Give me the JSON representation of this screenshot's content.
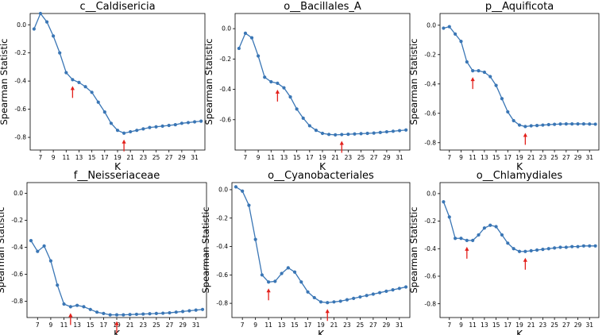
{
  "figure": {
    "x_tick_labels": [
      "7",
      "9",
      "11",
      "13",
      "15",
      "17",
      "19",
      "21",
      "23",
      "25",
      "27",
      "29",
      "31"
    ]
  },
  "chart_data": [
    {
      "type": "line",
      "title": "c__Caldisericia",
      "xlabel": "K",
      "ylabel": "Spearman Statistic",
      "xlim": [
        5.4,
        32.6
      ],
      "ylim": [
        -0.89,
        0.08
      ],
      "y_ticks": [
        0.0,
        -0.2,
        -0.4,
        -0.6,
        -0.8
      ],
      "y_tick_labels": [
        "0.0",
        "-0.2",
        "-0.4",
        "-0.6",
        "-0.8"
      ],
      "x": [
        6,
        7,
        8,
        9,
        10,
        11,
        12,
        13,
        14,
        15,
        16,
        17,
        18,
        19,
        20,
        21,
        22,
        23,
        24,
        25,
        26,
        27,
        28,
        29,
        30,
        31,
        32
      ],
      "values": [
        -0.03,
        0.08,
        0.02,
        -0.08,
        -0.2,
        -0.34,
        -0.39,
        -0.41,
        -0.44,
        -0.48,
        -0.55,
        -0.62,
        -0.7,
        -0.75,
        -0.77,
        -0.76,
        -0.75,
        -0.74,
        -0.73,
        -0.725,
        -0.72,
        -0.715,
        -0.71,
        -0.7,
        -0.695,
        -0.69,
        -0.685
      ],
      "markers": [
        12,
        20
      ]
    },
    {
      "type": "line",
      "title": "o__Bacillales_A",
      "xlabel": "K",
      "ylabel": "Spearman Statistic",
      "xlim": [
        5.4,
        32.6
      ],
      "ylim": [
        -0.8,
        0.1
      ],
      "y_ticks": [
        0.0,
        -0.2,
        -0.4,
        -0.6
      ],
      "y_tick_labels": [
        "0.0",
        "-0.2",
        "-0.4",
        "-0.6"
      ],
      "x": [
        6,
        7,
        8,
        9,
        10,
        11,
        12,
        13,
        14,
        15,
        16,
        17,
        18,
        19,
        20,
        21,
        22,
        23,
        24,
        25,
        26,
        27,
        28,
        29,
        30,
        31,
        32
      ],
      "values": [
        -0.13,
        -0.03,
        -0.06,
        -0.18,
        -0.32,
        -0.35,
        -0.36,
        -0.39,
        -0.45,
        -0.53,
        -0.59,
        -0.64,
        -0.67,
        -0.69,
        -0.697,
        -0.7,
        -0.698,
        -0.696,
        -0.694,
        -0.692,
        -0.69,
        -0.688,
        -0.684,
        -0.68,
        -0.676,
        -0.672,
        -0.668
      ],
      "markers": [
        12,
        22
      ]
    },
    {
      "type": "line",
      "title": "p__Aquificota",
      "xlabel": "K",
      "ylabel": "Spearman Statistic",
      "xlim": [
        5.4,
        32.6
      ],
      "ylim": [
        -0.85,
        0.08
      ],
      "y_ticks": [
        0.0,
        -0.2,
        -0.4,
        -0.6,
        -0.8
      ],
      "y_tick_labels": [
        "0.0",
        "-0.2",
        "-0.4",
        "-0.6",
        "-0.8"
      ],
      "x": [
        6,
        7,
        8,
        9,
        10,
        11,
        12,
        13,
        14,
        15,
        16,
        17,
        18,
        19,
        20,
        21,
        22,
        23,
        24,
        25,
        26,
        27,
        28,
        29,
        30,
        31,
        32
      ],
      "values": [
        -0.02,
        -0.01,
        -0.06,
        -0.11,
        -0.25,
        -0.31,
        -0.31,
        -0.32,
        -0.35,
        -0.41,
        -0.5,
        -0.59,
        -0.65,
        -0.68,
        -0.69,
        -0.685,
        -0.683,
        -0.68,
        -0.677,
        -0.675,
        -0.673,
        -0.672,
        -0.672,
        -0.672,
        -0.672,
        -0.673,
        -0.674
      ],
      "markers": [
        11,
        20
      ]
    },
    {
      "type": "line",
      "title": "f__Neisseriaceae",
      "xlabel": "K",
      "ylabel": "Spearman Statistic",
      "xlim": [
        5.4,
        32.6
      ],
      "ylim": [
        -0.92,
        0.08
      ],
      "y_ticks": [
        0.0,
        -0.2,
        -0.4,
        -0.6,
        -0.8
      ],
      "y_tick_labels": [
        "0.0",
        "-0.2",
        "-0.4",
        "-0.6",
        "-0.8"
      ],
      "x": [
        6,
        7,
        8,
        9,
        10,
        11,
        12,
        13,
        14,
        15,
        16,
        17,
        18,
        19,
        20,
        21,
        22,
        23,
        24,
        25,
        26,
        27,
        28,
        29,
        30,
        31,
        32
      ],
      "values": [
        -0.35,
        -0.43,
        -0.39,
        -0.5,
        -0.68,
        -0.82,
        -0.84,
        -0.83,
        -0.84,
        -0.86,
        -0.88,
        -0.89,
        -0.9,
        -0.9,
        -0.9,
        -0.898,
        -0.896,
        -0.894,
        -0.892,
        -0.89,
        -0.888,
        -0.885,
        -0.88,
        -0.875,
        -0.87,
        -0.865,
        -0.86
      ],
      "markers": [
        12,
        19
      ]
    },
    {
      "type": "line",
      "title": "o__Cyanobacteriales",
      "xlabel": "K",
      "ylabel": "Spearman Statistic",
      "xlim": [
        5.4,
        32.6
      ],
      "ylim": [
        -0.9,
        0.05
      ],
      "y_ticks": [
        0.0,
        -0.2,
        -0.4,
        -0.6,
        -0.8
      ],
      "y_tick_labels": [
        "0.0",
        "-0.2",
        "-0.4",
        "-0.6",
        "-0.8"
      ],
      "x": [
        6,
        7,
        8,
        9,
        10,
        11,
        12,
        13,
        14,
        15,
        16,
        17,
        18,
        19,
        20,
        21,
        22,
        23,
        24,
        25,
        26,
        27,
        28,
        29,
        30,
        31,
        32
      ],
      "values": [
        0.02,
        -0.01,
        -0.11,
        -0.35,
        -0.6,
        -0.65,
        -0.645,
        -0.59,
        -0.55,
        -0.58,
        -0.65,
        -0.72,
        -0.76,
        -0.79,
        -0.795,
        -0.79,
        -0.785,
        -0.775,
        -0.765,
        -0.755,
        -0.745,
        -0.735,
        -0.725,
        -0.715,
        -0.705,
        -0.695,
        -0.685
      ],
      "markers": [
        11,
        20
      ]
    },
    {
      "type": "line",
      "title": "o__Chlamydiales",
      "xlabel": "K",
      "ylabel": "Spearman Statistic",
      "xlim": [
        5.4,
        32.6
      ],
      "ylim": [
        -0.9,
        0.08
      ],
      "y_ticks": [
        0.0,
        -0.2,
        -0.4,
        -0.6,
        -0.8
      ],
      "y_tick_labels": [
        "0.0",
        "-0.2",
        "-0.4",
        "-0.6",
        "-0.8"
      ],
      "x": [
        6,
        7,
        8,
        9,
        10,
        11,
        12,
        13,
        14,
        15,
        16,
        17,
        18,
        19,
        20,
        21,
        22,
        23,
        24,
        25,
        26,
        27,
        28,
        29,
        30,
        31,
        32
      ],
      "values": [
        -0.06,
        -0.17,
        -0.325,
        -0.325,
        -0.34,
        -0.34,
        -0.3,
        -0.25,
        -0.23,
        -0.24,
        -0.3,
        -0.36,
        -0.4,
        -0.42,
        -0.42,
        -0.415,
        -0.41,
        -0.405,
        -0.4,
        -0.395,
        -0.39,
        -0.39,
        -0.385,
        -0.385,
        -0.38,
        -0.38,
        -0.38
      ],
      "markers": [
        10,
        20
      ]
    }
  ]
}
